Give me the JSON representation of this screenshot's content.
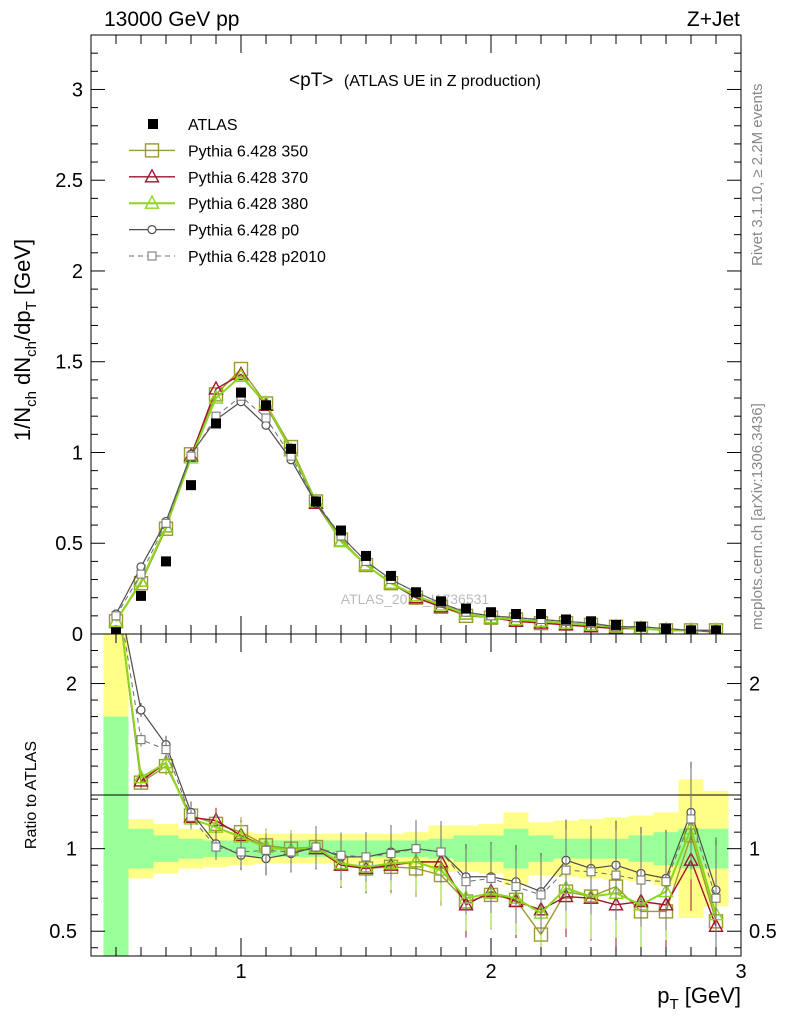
{
  "header": {
    "left": "13000 GeV pp",
    "right": "Z+Jet"
  },
  "side_labels": {
    "rivet": "Rivet 3.1.10, ≥ 2.2M events",
    "mcplots": "mcplots.cern.ch [arXiv:1306.3436]"
  },
  "watermark": "ATLAS_2019_I1736531",
  "chart_data": [
    {
      "type": "line",
      "title": "<pT> (ATLAS UE in Z production)",
      "title_main": "<pT>",
      "title_sub": "(ATLAS UE in Z production)",
      "ylabel": "1/N_ch dN_ch/dp_T [GeV]",
      "xlim": [
        0.4,
        3.0
      ],
      "ylim": [
        0,
        3.3
      ],
      "yticks": [
        0,
        0.5,
        1,
        1.5,
        2,
        2.5,
        3
      ],
      "ytick_labels": [
        "0",
        "0.5",
        "1",
        "1.5",
        "2",
        "2.5",
        "3"
      ],
      "x": [
        0.5,
        0.6,
        0.7,
        0.8,
        0.9,
        1.0,
        1.1,
        1.2,
        1.3,
        1.4,
        1.5,
        1.6,
        1.7,
        1.8,
        1.9,
        2.0,
        2.1,
        2.2,
        2.3,
        2.4,
        2.5,
        2.6,
        2.7,
        2.8,
        2.9
      ],
      "legend": [
        "ATLAS",
        "Pythia 6.428 350",
        "Pythia 6.428 370",
        "Pythia 6.428 380",
        "Pythia 6.428 p0",
        "Pythia 6.428 p2010"
      ],
      "series": [
        {
          "name": "ATLAS",
          "color": "#000000",
          "values": [
            0.01,
            0.21,
            0.4,
            0.82,
            1.16,
            1.33,
            1.26,
            1.02,
            0.73,
            0.57,
            0.43,
            0.32,
            0.23,
            0.18,
            0.14,
            0.12,
            0.11,
            0.11,
            0.08,
            0.07,
            0.05,
            0.04,
            0.03,
            0.02,
            0.02
          ]
        },
        {
          "name": "Pythia 6.428 350",
          "color": "#9a9a2f",
          "values": [
            0.07,
            0.28,
            0.58,
            0.99,
            1.32,
            1.46,
            1.27,
            1.03,
            0.73,
            0.52,
            0.38,
            0.28,
            0.2,
            0.15,
            0.1,
            0.09,
            0.08,
            0.06,
            0.06,
            0.05,
            0.04,
            0.03,
            0.02,
            0.02,
            0.02
          ]
        },
        {
          "name": "Pythia 6.428 370",
          "color": "#a3122b",
          "values": [
            0.07,
            0.29,
            0.59,
            0.98,
            1.35,
            1.43,
            1.26,
            1.01,
            0.72,
            0.51,
            0.38,
            0.28,
            0.2,
            0.15,
            0.11,
            0.09,
            0.07,
            0.06,
            0.05,
            0.04,
            0.03,
            0.03,
            0.02,
            0.02,
            0.01
          ]
        },
        {
          "name": "Pythia 6.428 380",
          "color": "#8cd61e",
          "values": [
            0.07,
            0.29,
            0.59,
            0.97,
            1.3,
            1.42,
            1.27,
            1.01,
            0.73,
            0.51,
            0.38,
            0.28,
            0.21,
            0.16,
            0.11,
            0.09,
            0.08,
            0.07,
            0.06,
            0.05,
            0.04,
            0.03,
            0.02,
            0.02,
            0.02
          ]
        },
        {
          "name": "Pythia 6.428 p0",
          "color": "#4d4d4d",
          "values": [
            0.11,
            0.37,
            0.62,
            0.99,
            1.18,
            1.28,
            1.15,
            0.96,
            0.72,
            0.54,
            0.4,
            0.3,
            0.23,
            0.17,
            0.12,
            0.1,
            0.09,
            0.08,
            0.07,
            0.06,
            0.04,
            0.04,
            0.03,
            0.02,
            0.02
          ]
        },
        {
          "name": "Pythia 6.428 p2010",
          "color": "#6e6e6e",
          "values": [
            0.1,
            0.33,
            0.61,
            0.98,
            1.2,
            1.31,
            1.19,
            0.98,
            0.73,
            0.54,
            0.4,
            0.3,
            0.23,
            0.17,
            0.12,
            0.1,
            0.09,
            0.08,
            0.07,
            0.06,
            0.04,
            0.04,
            0.03,
            0.02,
            0.02
          ]
        }
      ]
    },
    {
      "type": "line",
      "ylabel": "Ratio to ATLAS",
      "xlabel": "p_T [GeV]",
      "xlim": [
        0.4,
        3.0
      ],
      "ylim": [
        0.35,
        2.3
      ],
      "yticks": [
        0.5,
        1,
        2
      ],
      "ytick_labels": [
        "0.5",
        "1",
        "2"
      ],
      "xticks": [
        1,
        2,
        3
      ],
      "xtick_labels": [
        "1",
        "2",
        "3"
      ],
      "x": [
        0.5,
        0.6,
        0.7,
        0.8,
        0.9,
        1.0,
        1.1,
        1.2,
        1.3,
        1.4,
        1.5,
        1.6,
        1.7,
        1.8,
        1.9,
        2.0,
        2.1,
        2.2,
        2.3,
        2.4,
        2.5,
        2.6,
        2.7,
        2.8,
        2.9
      ],
      "band_stat": [
        0.8,
        0.12,
        0.08,
        0.06,
        0.05,
        0.05,
        0.05,
        0.05,
        0.05,
        0.05,
        0.05,
        0.05,
        0.05,
        0.06,
        0.08,
        0.08,
        0.12,
        0.08,
        0.06,
        0.06,
        0.06,
        0.08,
        0.1,
        0.12,
        0.12
      ],
      "band_syst": [
        1.3,
        0.18,
        0.15,
        0.12,
        0.11,
        0.1,
        0.09,
        0.09,
        0.09,
        0.09,
        0.09,
        0.09,
        0.1,
        0.14,
        0.14,
        0.15,
        0.22,
        0.16,
        0.17,
        0.18,
        0.19,
        0.2,
        0.22,
        0.42,
        0.35
      ],
      "series": [
        {
          "name": "Pythia 6.428 350",
          "color": "#9a9a2f",
          "values": [
            2.6,
            1.4,
            1.5,
            1.2,
            1.15,
            1.1,
            1.02,
            1.0,
            1.01,
            0.91,
            0.88,
            0.89,
            0.88,
            0.84,
            0.68,
            0.72,
            0.69,
            0.48,
            0.74,
            0.71,
            0.77,
            0.62,
            0.62,
            1.08,
            0.56
          ]
        },
        {
          "name": "Pythia 6.428 370",
          "color": "#a3122b",
          "values": [
            2.6,
            1.41,
            1.52,
            1.19,
            1.17,
            1.08,
            1.01,
            0.99,
            1.0,
            0.9,
            0.88,
            0.9,
            0.92,
            0.92,
            0.66,
            0.74,
            0.68,
            0.63,
            0.71,
            0.7,
            0.66,
            0.68,
            0.66,
            0.93,
            0.53
          ]
        },
        {
          "name": "Pythia 6.428 380",
          "color": "#8cd61e",
          "values": [
            2.6,
            1.43,
            1.52,
            1.18,
            1.13,
            1.07,
            1.01,
            0.99,
            1.01,
            0.91,
            0.89,
            0.91,
            0.92,
            0.87,
            0.7,
            0.73,
            0.7,
            0.61,
            0.76,
            0.71,
            0.73,
            0.66,
            0.74,
            1.12,
            0.6
          ]
        },
        {
          "name": "Pythia 6.428 p0",
          "color": "#4d4d4d",
          "values": [
            2.6,
            1.84,
            1.63,
            1.22,
            1.03,
            0.96,
            0.94,
            0.97,
            1.01,
            0.95,
            0.95,
            0.98,
            1.0,
            0.98,
            0.83,
            0.83,
            0.8,
            0.74,
            0.93,
            0.88,
            0.9,
            0.85,
            0.82,
            1.22,
            0.75
          ]
        },
        {
          "name": "Pythia 6.428 p2010",
          "color": "#6e6e6e",
          "values": [
            2.6,
            1.66,
            1.6,
            1.19,
            1.01,
            0.98,
            0.99,
            0.98,
            1.01,
            0.96,
            0.95,
            0.97,
            1.0,
            0.98,
            0.8,
            0.82,
            0.77,
            0.72,
            0.87,
            0.86,
            0.84,
            0.81,
            0.8,
            1.18,
            0.7
          ]
        }
      ]
    }
  ]
}
